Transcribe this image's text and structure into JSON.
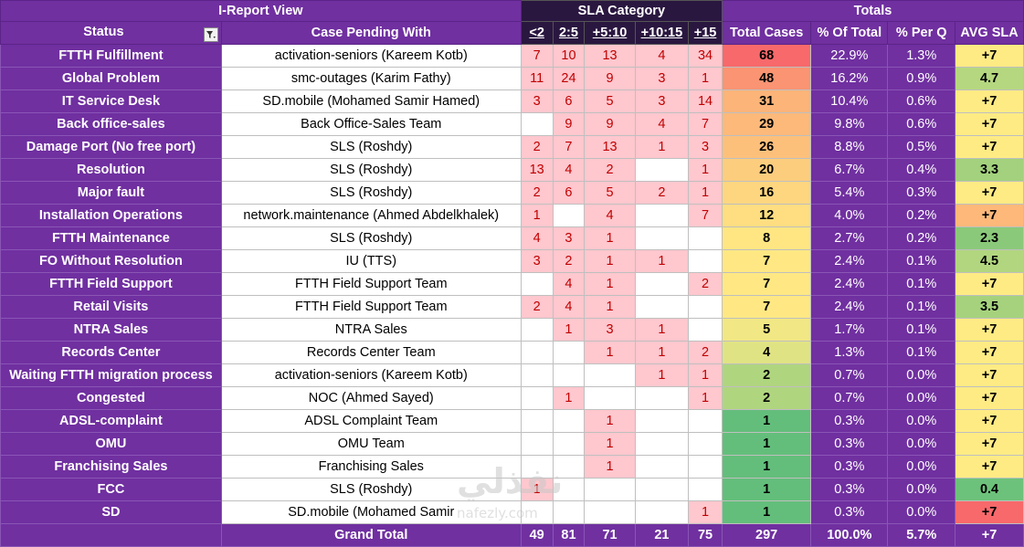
{
  "header": {
    "view_title": "I-Report View",
    "sla_title": "SLA Category",
    "totals_title": "Totals",
    "status_label": "Status",
    "pending_label": "Case Pending With",
    "sla_cols": [
      "<2",
      "2:5",
      "+5:10",
      "+10:15",
      "+15"
    ],
    "total_cases_label": "Total Cases",
    "pct_total_label": "% Of Total",
    "pct_q_label": "% Per Q",
    "avg_sla_label": "AVG SLA"
  },
  "colors": {
    "header_purple": "#7030a0",
    "sla_fill": "#ffc7ce",
    "sla_text": "#c00000",
    "avg_plus7": "#ffeb84",
    "avg_green": "#8bc97a",
    "avg_red": "#f8696b"
  },
  "rows": [
    {
      "status": "FTTH Fulfillment",
      "pending": "activation-seniors (Kareem Kotb)",
      "sla": [
        "7",
        "10",
        "13",
        "4",
        "34"
      ],
      "total": "68",
      "total_color": "#f8696b",
      "pct_total": "22.9%",
      "pct_q": "1.3%",
      "avg": "+7",
      "avg_color": "#ffeb84"
    },
    {
      "status": "Global Problem",
      "pending": "smc-outages (Karim Fathy)",
      "sla": [
        "11",
        "24",
        "9",
        "3",
        "1"
      ],
      "total": "48",
      "total_color": "#fa9473",
      "pct_total": "16.2%",
      "pct_q": "0.9%",
      "avg": "4.7",
      "avg_color": "#b5d77f"
    },
    {
      "status": "IT Service Desk",
      "pending": "SD.mobile (Mohamed Samir Hamed)",
      "sla": [
        "3",
        "6",
        "5",
        "3",
        "14"
      ],
      "total": "31",
      "total_color": "#fcb479",
      "pct_total": "10.4%",
      "pct_q": "0.6%",
      "avg": "+7",
      "avg_color": "#ffeb84"
    },
    {
      "status": "Back office-sales",
      "pending": "Back Office-Sales Team",
      "sla": [
        "",
        "9",
        "9",
        "4",
        "7"
      ],
      "total": "29",
      "total_color": "#fcb97a",
      "pct_total": "9.8%",
      "pct_q": "0.6%",
      "avg": "+7",
      "avg_color": "#ffeb84"
    },
    {
      "status": "Damage Port (No free port)",
      "pending": "SLS (Roshdy)",
      "sla": [
        "2",
        "7",
        "13",
        "1",
        "3"
      ],
      "total": "26",
      "total_color": "#fdc07b",
      "pct_total": "8.8%",
      "pct_q": "0.5%",
      "avg": "+7",
      "avg_color": "#ffeb84"
    },
    {
      "status": "Resolution",
      "pending": "SLS (Roshdy)",
      "sla": [
        "13",
        "4",
        "2",
        "",
        "1"
      ],
      "total": "20",
      "total_color": "#fdcd7e",
      "pct_total": "6.7%",
      "pct_q": "0.4%",
      "avg": "3.3",
      "avg_color": "#a3d17d"
    },
    {
      "status": "Major fault",
      "pending": "SLS (Roshdy)",
      "sla": [
        "2",
        "6",
        "5",
        "2",
        "1"
      ],
      "total": "16",
      "total_color": "#fed680",
      "pct_total": "5.4%",
      "pct_q": "0.3%",
      "avg": "+7",
      "avg_color": "#ffeb84"
    },
    {
      "status": "Installation Operations",
      "pending": "network.maintenance (Ahmed Abdelkhalek)",
      "sla": [
        "1",
        "",
        "4",
        "",
        "7"
      ],
      "total": "12",
      "total_color": "#fede81",
      "pct_total": "4.0%",
      "pct_q": "0.2%",
      "avg": "+7",
      "avg_color": "#fdb87a"
    },
    {
      "status": "FTTH Maintenance",
      "pending": "SLS (Roshdy)",
      "sla": [
        "4",
        "3",
        "1",
        "",
        ""
      ],
      "total": "8",
      "total_color": "#ffe683",
      "pct_total": "2.7%",
      "pct_q": "0.2%",
      "avg": "2.3",
      "avg_color": "#8bc97a"
    },
    {
      "status": "FO Without Resolution",
      "pending": "IU (TTS)",
      "sla": [
        "3",
        "2",
        "1",
        "1",
        ""
      ],
      "total": "7",
      "total_color": "#ffe883",
      "pct_total": "2.4%",
      "pct_q": "0.1%",
      "avg": "4.5",
      "avg_color": "#b2d67f"
    },
    {
      "status": "FTTH Field Support",
      "pending": "FTTH Field Support Team",
      "sla": [
        "",
        "4",
        "1",
        "",
        "2"
      ],
      "total": "7",
      "total_color": "#ffe883",
      "pct_total": "2.4%",
      "pct_q": "0.1%",
      "avg": "+7",
      "avg_color": "#ffeb84"
    },
    {
      "status": "Retail Visits",
      "pending": "FTTH Field Support Team",
      "sla": [
        "2",
        "4",
        "1",
        "",
        ""
      ],
      "total": "7",
      "total_color": "#ffe883",
      "pct_total": "2.4%",
      "pct_q": "0.1%",
      "avg": "3.5",
      "avg_color": "#a6d27d"
    },
    {
      "status": "NTRA Sales",
      "pending": "NTRA Sales",
      "sla": [
        "",
        "1",
        "3",
        "1",
        ""
      ],
      "total": "5",
      "total_color": "#f1e784",
      "pct_total": "1.7%",
      "pct_q": "0.1%",
      "avg": "+7",
      "avg_color": "#ffeb84"
    },
    {
      "status": "Records Center",
      "pending": "Records Center Team",
      "sla": [
        "",
        "",
        "1",
        "1",
        "2"
      ],
      "total": "4",
      "total_color": "#e0e383",
      "pct_total": "1.3%",
      "pct_q": "0.1%",
      "avg": "+7",
      "avg_color": "#ffeb84"
    },
    {
      "status": "Waiting FTTH migration process",
      "pending": "activation-seniors (Kareem Kotb)",
      "sla": [
        "",
        "",
        "",
        "1",
        "1"
      ],
      "total": "2",
      "total_color": "#b0d57f",
      "pct_total": "0.7%",
      "pct_q": "0.0%",
      "avg": "+7",
      "avg_color": "#ffeb84"
    },
    {
      "status": "Congested",
      "pending": "NOC (Ahmed Sayed)",
      "sla": [
        "",
        "1",
        "",
        "",
        "1"
      ],
      "total": "2",
      "total_color": "#b0d57f",
      "pct_total": "0.7%",
      "pct_q": "0.0%",
      "avg": "+7",
      "avg_color": "#ffeb84"
    },
    {
      "status": "ADSL-complaint",
      "pending": "ADSL Complaint Team",
      "sla": [
        "",
        "",
        "1",
        "",
        ""
      ],
      "total": "1",
      "total_color": "#63be7b",
      "pct_total": "0.3%",
      "pct_q": "0.0%",
      "avg": "+7",
      "avg_color": "#ffeb84"
    },
    {
      "status": "OMU",
      "pending": "OMU Team",
      "sla": [
        "",
        "",
        "1",
        "",
        ""
      ],
      "total": "1",
      "total_color": "#63be7b",
      "pct_total": "0.3%",
      "pct_q": "0.0%",
      "avg": "+7",
      "avg_color": "#ffeb84"
    },
    {
      "status": "Franchising Sales",
      "pending": "Franchising Sales",
      "sla": [
        "",
        "",
        "1",
        "",
        ""
      ],
      "total": "1",
      "total_color": "#63be7b",
      "pct_total": "0.3%",
      "pct_q": "0.0%",
      "avg": "+7",
      "avg_color": "#ffeb84"
    },
    {
      "status": "FCC",
      "pending": "SLS (Roshdy)",
      "sla": [
        "1",
        "",
        "",
        "",
        ""
      ],
      "total": "1",
      "total_color": "#63be7b",
      "pct_total": "0.3%",
      "pct_q": "0.0%",
      "avg": "0.4",
      "avg_color": "#6dc27b"
    },
    {
      "status": "SD",
      "pending": "SD.mobile (Mohamed Samir",
      "sla": [
        "",
        "",
        "",
        "",
        "1"
      ],
      "total": "1",
      "total_color": "#63be7b",
      "pct_total": "0.3%",
      "pct_q": "0.0%",
      "avg": "+7",
      "avg_color": "#f8696b"
    }
  ],
  "grand": {
    "label": "Grand Total",
    "sla": [
      "49",
      "81",
      "71",
      "21",
      "75"
    ],
    "total": "297",
    "pct_total": "100.0%",
    "pct_q": "5.7%",
    "avg": "+7"
  },
  "watermark": {
    "arabic": "نفذلي",
    "latin": "nafezly.com"
  }
}
